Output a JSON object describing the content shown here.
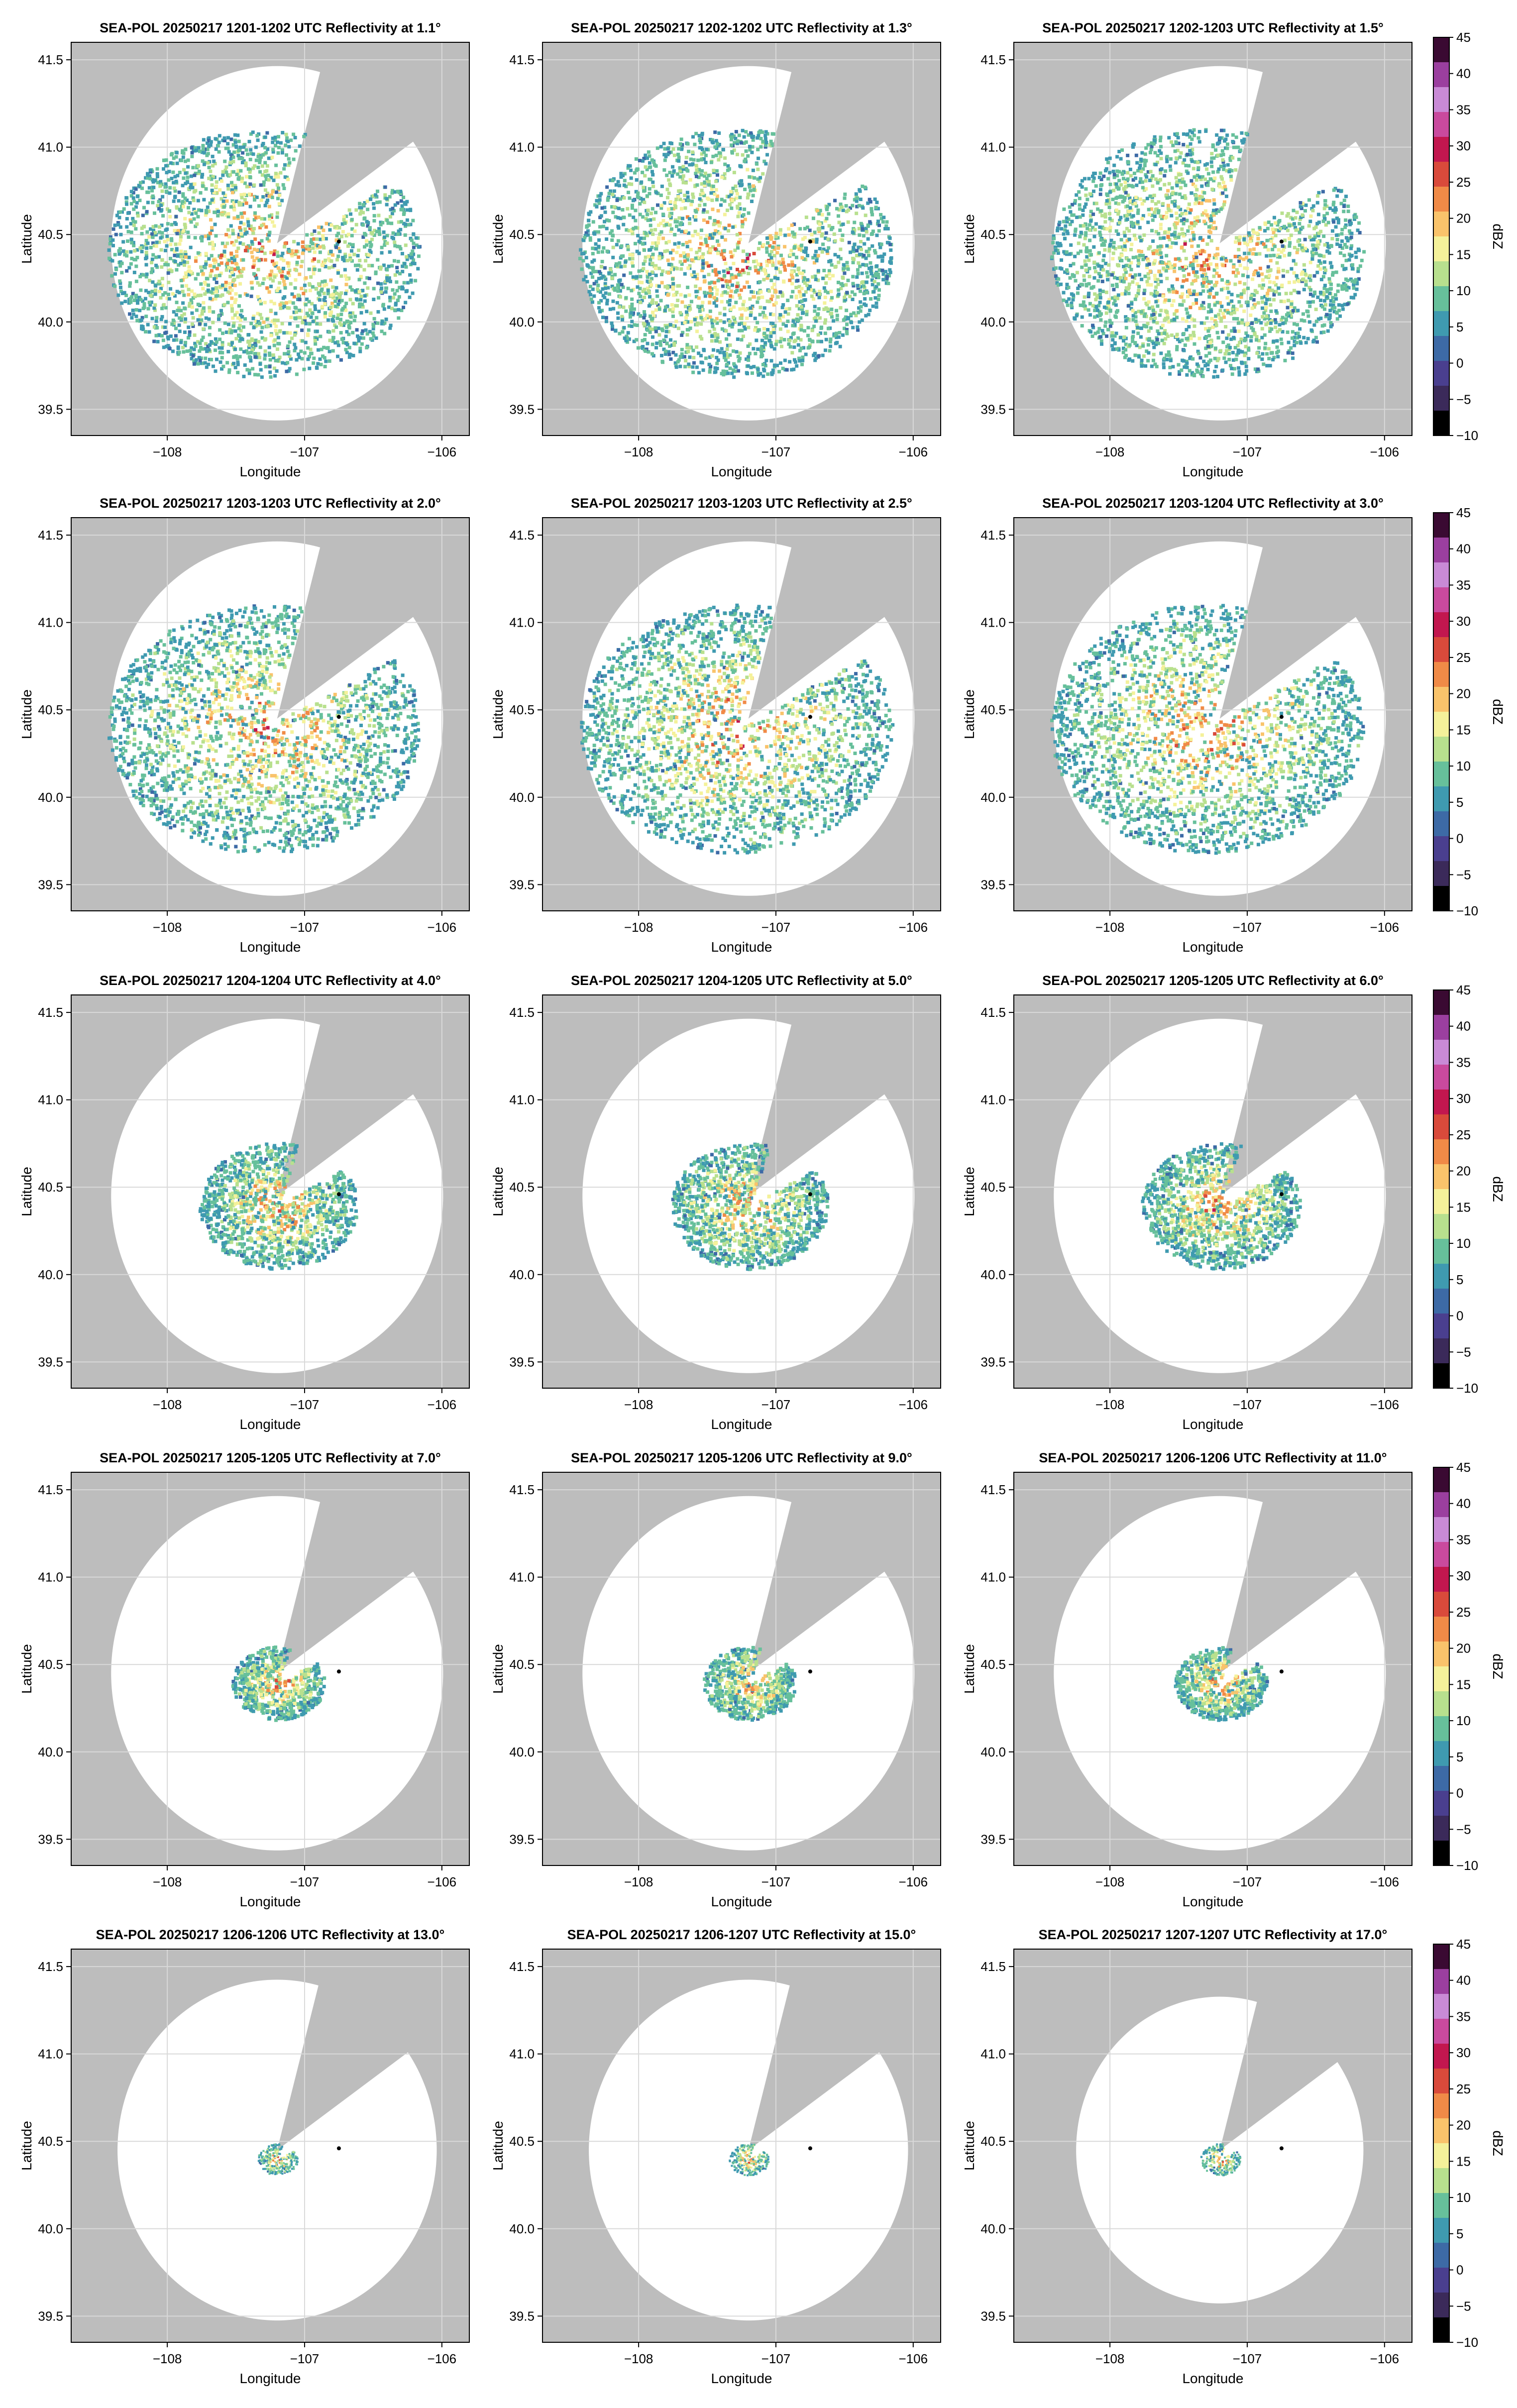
{
  "figure": {
    "background": "#ffffff",
    "axes_background": "#bdbdbd",
    "coverage_fill": "#ffffff",
    "radar_marker_color": "#000000"
  },
  "chart_data": [
    {
      "type": "heatmap",
      "title": "SEA-POL 20250217 1201-1202 UTC Reflectivity at 1.1°",
      "xlabel": "Longitude",
      "ylabel": "Latitude",
      "xlim": [
        -108.7,
        -105.8
      ],
      "ylim": [
        39.35,
        41.6
      ],
      "xticks": [
        -108,
        -107,
        -106
      ],
      "yticks": [
        39.5,
        40.0,
        40.5,
        41.0,
        41.5
      ],
      "grid": true,
      "echo_extent": "widespread",
      "colorbar": false
    },
    {
      "type": "heatmap",
      "title": "SEA-POL 20250217 1202-1202 UTC Reflectivity at 1.3°",
      "xlabel": "Longitude",
      "ylabel": "Latitude",
      "xlim": [
        -108.7,
        -105.8
      ],
      "ylim": [
        39.35,
        41.6
      ],
      "xticks": [
        -108,
        -107,
        -106
      ],
      "yticks": [
        39.5,
        40.0,
        40.5,
        41.0,
        41.5
      ],
      "grid": true,
      "echo_extent": "widespread",
      "colorbar": false
    },
    {
      "type": "heatmap",
      "title": "SEA-POL 20250217 1202-1203 UTC Reflectivity at 1.5°",
      "xlabel": "Longitude",
      "ylabel": "Latitude",
      "xlim": [
        -108.7,
        -105.8
      ],
      "ylim": [
        39.35,
        41.6
      ],
      "xticks": [
        -108,
        -107,
        -106
      ],
      "yticks": [
        39.5,
        40.0,
        40.5,
        41.0,
        41.5
      ],
      "grid": true,
      "echo_extent": "widespread",
      "colorbar": true
    },
    {
      "type": "heatmap",
      "title": "SEA-POL 20250217 1203-1203 UTC Reflectivity at 2.0°",
      "xlabel": "Longitude",
      "ylabel": "Latitude",
      "xlim": [
        -108.7,
        -105.8
      ],
      "ylim": [
        39.35,
        41.6
      ],
      "xticks": [
        -108,
        -107,
        -106
      ],
      "yticks": [
        39.5,
        40.0,
        40.5,
        41.0,
        41.5
      ],
      "grid": true,
      "echo_extent": "widespread",
      "colorbar": false
    },
    {
      "type": "heatmap",
      "title": "SEA-POL 20250217 1203-1203 UTC Reflectivity at 2.5°",
      "xlabel": "Longitude",
      "ylabel": "Latitude",
      "xlim": [
        -108.7,
        -105.8
      ],
      "ylim": [
        39.35,
        41.6
      ],
      "xticks": [
        -108,
        -107,
        -106
      ],
      "yticks": [
        39.5,
        40.0,
        40.5,
        41.0,
        41.5
      ],
      "grid": true,
      "echo_extent": "widespread",
      "colorbar": false
    },
    {
      "type": "heatmap",
      "title": "SEA-POL 20250217 1203-1204 UTC Reflectivity at 3.0°",
      "xlabel": "Longitude",
      "ylabel": "Latitude",
      "xlim": [
        -108.7,
        -105.8
      ],
      "ylim": [
        39.35,
        41.6
      ],
      "xticks": [
        -108,
        -107,
        -106
      ],
      "yticks": [
        39.5,
        40.0,
        40.5,
        41.0,
        41.5
      ],
      "grid": true,
      "echo_extent": "widespread",
      "colorbar": true
    },
    {
      "type": "heatmap",
      "title": "SEA-POL 20250217 1204-1204 UTC Reflectivity at 4.0°",
      "xlabel": "Longitude",
      "ylabel": "Latitude",
      "xlim": [
        -108.7,
        -105.8
      ],
      "ylim": [
        39.35,
        41.6
      ],
      "xticks": [
        -108,
        -107,
        -106
      ],
      "yticks": [
        39.5,
        40.0,
        40.5,
        41.0,
        41.5
      ],
      "grid": true,
      "echo_extent": "moderate",
      "colorbar": false
    },
    {
      "type": "heatmap",
      "title": "SEA-POL 20250217 1204-1205 UTC Reflectivity at 5.0°",
      "xlabel": "Longitude",
      "ylabel": "Latitude",
      "xlim": [
        -108.7,
        -105.8
      ],
      "ylim": [
        39.35,
        41.6
      ],
      "xticks": [
        -108,
        -107,
        -106
      ],
      "yticks": [
        39.5,
        40.0,
        40.5,
        41.0,
        41.5
      ],
      "grid": true,
      "echo_extent": "moderate",
      "colorbar": false
    },
    {
      "type": "heatmap",
      "title": "SEA-POL 20250217 1205-1205 UTC Reflectivity at 6.0°",
      "xlabel": "Longitude",
      "ylabel": "Latitude",
      "xlim": [
        -108.7,
        -105.8
      ],
      "ylim": [
        39.35,
        41.6
      ],
      "xticks": [
        -108,
        -107,
        -106
      ],
      "yticks": [
        39.5,
        40.0,
        40.5,
        41.0,
        41.5
      ],
      "grid": true,
      "echo_extent": "moderate",
      "colorbar": true
    },
    {
      "type": "heatmap",
      "title": "SEA-POL 20250217 1205-1205 UTC Reflectivity at 7.0°",
      "xlabel": "Longitude",
      "ylabel": "Latitude",
      "xlim": [
        -108.7,
        -105.8
      ],
      "ylim": [
        39.35,
        41.6
      ],
      "xticks": [
        -108,
        -107,
        -106
      ],
      "yticks": [
        39.5,
        40.0,
        40.5,
        41.0,
        41.5
      ],
      "grid": true,
      "echo_extent": "small",
      "colorbar": false
    },
    {
      "type": "heatmap",
      "title": "SEA-POL 20250217 1205-1206 UTC Reflectivity at 9.0°",
      "xlabel": "Longitude",
      "ylabel": "Latitude",
      "xlim": [
        -108.7,
        -105.8
      ],
      "ylim": [
        39.35,
        41.6
      ],
      "xticks": [
        -108,
        -107,
        -106
      ],
      "yticks": [
        39.5,
        40.0,
        40.5,
        41.0,
        41.5
      ],
      "grid": true,
      "echo_extent": "small",
      "colorbar": false
    },
    {
      "type": "heatmap",
      "title": "SEA-POL 20250217 1206-1206 UTC Reflectivity at 11.0°",
      "xlabel": "Longitude",
      "ylabel": "Latitude",
      "xlim": [
        -108.7,
        -105.8
      ],
      "ylim": [
        39.35,
        41.6
      ],
      "xticks": [
        -108,
        -107,
        -106
      ],
      "yticks": [
        39.5,
        40.0,
        40.5,
        41.0,
        41.5
      ],
      "grid": true,
      "echo_extent": "small",
      "colorbar": true
    },
    {
      "type": "heatmap",
      "title": "SEA-POL 20250217 1206-1206 UTC Reflectivity at 13.0°",
      "xlabel": "Longitude",
      "ylabel": "Latitude",
      "xlim": [
        -108.7,
        -105.8
      ],
      "ylim": [
        39.35,
        41.6
      ],
      "xticks": [
        -108,
        -107,
        -106
      ],
      "yticks": [
        39.5,
        40.0,
        40.5,
        41.0,
        41.5
      ],
      "grid": true,
      "echo_extent": "tiny",
      "colorbar": false
    },
    {
      "type": "heatmap",
      "title": "SEA-POL 20250217 1206-1207 UTC Reflectivity at 15.0°",
      "xlabel": "Longitude",
      "ylabel": "Latitude",
      "xlim": [
        -108.7,
        -105.8
      ],
      "ylim": [
        39.35,
        41.6
      ],
      "xticks": [
        -108,
        -107,
        -106
      ],
      "yticks": [
        39.5,
        40.0,
        40.5,
        41.0,
        41.5
      ],
      "grid": true,
      "echo_extent": "tiny",
      "colorbar": false
    },
    {
      "type": "heatmap",
      "title": "SEA-POL 20250217 1207-1207 UTC Reflectivity at 17.0°",
      "xlabel": "Longitude",
      "ylabel": "Latitude",
      "xlim": [
        -108.7,
        -105.8
      ],
      "ylim": [
        39.35,
        41.6
      ],
      "xticks": [
        -108,
        -107,
        -106
      ],
      "yticks": [
        39.5,
        40.0,
        40.5,
        41.0,
        41.5
      ],
      "grid": true,
      "echo_extent": "tiny",
      "colorbar": true
    }
  ],
  "colorbar": {
    "label": "dBZ",
    "range": [
      -10,
      45
    ],
    "ticks": [
      -10,
      -5,
      0,
      5,
      10,
      15,
      20,
      25,
      30,
      35,
      40,
      45
    ],
    "colors": [
      "#000000",
      "#3b2a5a",
      "#4a3f8f",
      "#3d6aa6",
      "#3f9ab0",
      "#67c09b",
      "#b8e08e",
      "#f4f19a",
      "#f9c36b",
      "#f08a47",
      "#d94a3b",
      "#c2174f",
      "#c94a9e",
      "#c98ad6",
      "#9b3f9f",
      "#3a0a32"
    ]
  },
  "radar": {
    "longitude": -107.2,
    "latitude": 40.45
  },
  "site_marker": {
    "longitude": -106.75,
    "latitude": 40.46
  }
}
